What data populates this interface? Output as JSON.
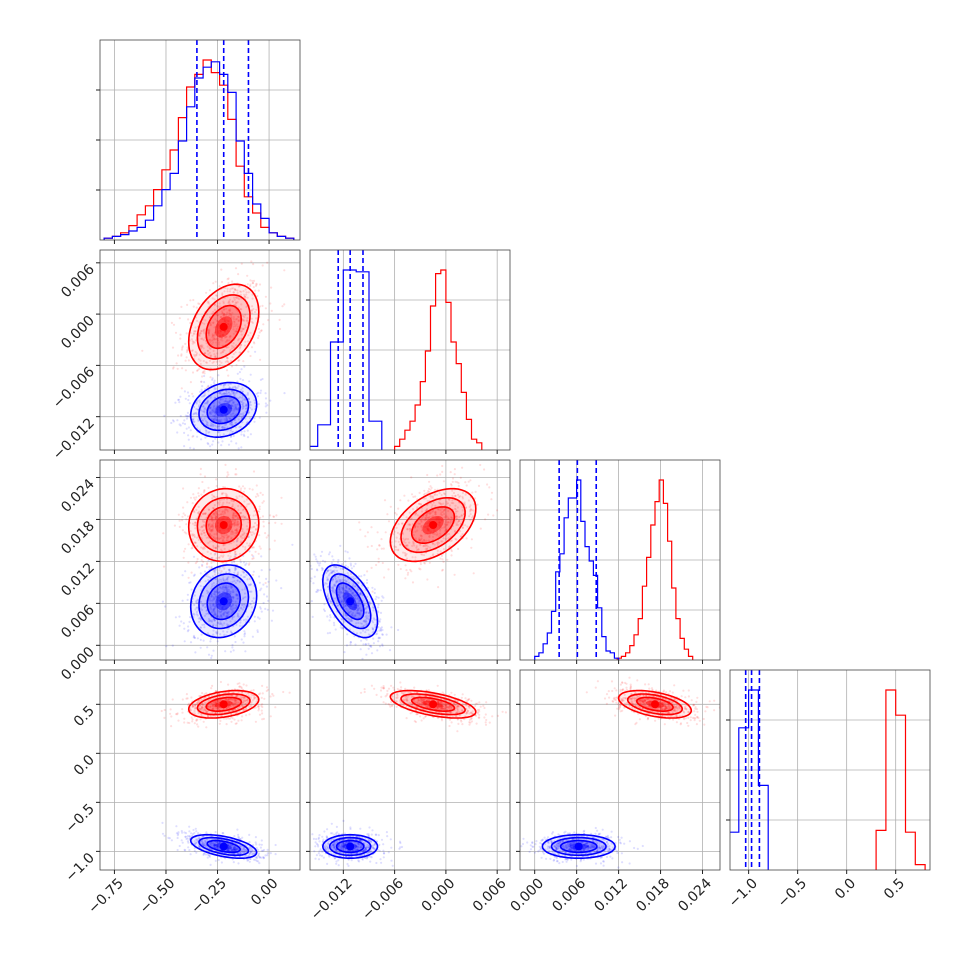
{
  "chart_data": {
    "type": "corner",
    "grid": true,
    "colors": {
      "red": "#ff0000",
      "blue": "#0000ff"
    },
    "params": [
      {
        "range": [
          -0.82,
          0.15
        ],
        "ticks": [
          -0.75,
          -0.5,
          -0.25,
          0.0
        ],
        "tick_labels": [
          "−0.75",
          "−0.50",
          "−0.25",
          "0.00"
        ]
      },
      {
        "range": [
          -0.0159,
          0.0075
        ],
        "ticks": [
          -0.012,
          -0.006,
          0.0,
          0.006
        ],
        "tick_labels": [
          "−0.012",
          "−0.006",
          "0.000",
          "0.006"
        ]
      },
      {
        "range": [
          -0.0021,
          0.0265
        ],
        "ticks": [
          0.0,
          0.006,
          0.012,
          0.018,
          0.024
        ],
        "tick_labels": [
          "0.000",
          "0.006",
          "0.012",
          "0.018",
          "0.024"
        ]
      },
      {
        "range": [
          -1.19,
          0.85
        ],
        "ticks": [
          -1.0,
          -0.5,
          0.0,
          0.5
        ],
        "tick_labels": [
          "−1.0",
          "−0.5",
          "0.0",
          "0.5"
        ]
      }
    ],
    "series": [
      {
        "color": "red",
        "mean": [
          -0.22,
          -0.0015,
          0.0172,
          0.5
        ],
        "sd": [
          0.085,
          0.0025,
          0.0026,
          0.07
        ],
        "corr": [
          [
            1,
            0.35,
            0.05,
            0.35
          ],
          [
            0.35,
            1,
            0.45,
            -0.55
          ],
          [
            0.05,
            0.45,
            1,
            -0.45
          ],
          [
            0.35,
            -0.55,
            -0.45,
            1
          ]
        ],
        "hist": [
          {
            "bins": [
              -0.8,
              -0.76,
              -0.72,
              -0.68,
              -0.64,
              -0.6,
              -0.56,
              -0.52,
              -0.48,
              -0.44,
              -0.4,
              -0.36,
              -0.32,
              -0.28,
              -0.24,
              -0.2,
              -0.16,
              -0.12,
              -0.08,
              -0.04,
              0.0,
              0.04,
              0.08,
              0.12
            ],
            "counts": [
              0.01,
              0.02,
              0.04,
              0.08,
              0.14,
              0.19,
              0.28,
              0.39,
              0.5,
              0.68,
              0.85,
              0.92,
              1.0,
              0.93,
              0.86,
              0.67,
              0.41,
              0.24,
              0.15,
              0.07,
              0.04,
              0.02,
              0.01
            ]
          },
          {
            "bins": [
              -0.006,
              -0.0054,
              -0.0048,
              -0.0042,
              -0.0036,
              -0.003,
              -0.0024,
              -0.0018,
              -0.0012,
              -0.0006,
              0.0,
              0.0006,
              0.0012,
              0.0018,
              0.0024,
              0.003,
              0.0036,
              0.0042
            ],
            "counts": [
              0.02,
              0.06,
              0.11,
              0.16,
              0.25,
              0.38,
              0.55,
              0.8,
              0.98,
              1.0,
              0.82,
              0.6,
              0.48,
              0.32,
              0.17,
              0.06,
              0.04
            ]
          },
          {
            "bins": [
              0.0118,
              0.0124,
              0.013,
              0.0136,
              0.0142,
              0.0148,
              0.0154,
              0.016,
              0.0166,
              0.0172,
              0.0178,
              0.0184,
              0.019,
              0.0196,
              0.0202,
              0.0208,
              0.0214,
              0.022,
              0.0226
            ],
            "counts": [
              0.01,
              0.02,
              0.04,
              0.08,
              0.14,
              0.23,
              0.41,
              0.57,
              0.75,
              0.88,
              1.0,
              0.87,
              0.66,
              0.4,
              0.23,
              0.12,
              0.06,
              0.02
            ]
          },
          {
            "bins": [
              0.3,
              0.4,
              0.5,
              0.6,
              0.7,
              0.8
            ],
            "counts": [
              0.22,
              1.0,
              0.86,
              0.21,
              0.03
            ]
          }
        ]
      },
      {
        "color": "blue",
        "mean": [
          -0.22,
          -0.0112,
          0.0063,
          -0.95
        ],
        "sd": [
          0.08,
          0.0016,
          0.0026,
          0.06
        ],
        "corr": [
          [
            1,
            0.2,
            0.15,
            -0.5
          ],
          [
            0.2,
            1,
            -0.55,
            0.0
          ],
          [
            0.15,
            -0.55,
            1,
            0.0
          ],
          [
            -0.5,
            0.0,
            0.0,
            1
          ]
        ],
        "quantiles": [
          [
            -0.35,
            -0.22,
            -0.1
          ],
          [
            -0.0126,
            -0.0112,
            -0.0097
          ],
          [
            0.0035,
            0.0061,
            0.0088
          ],
          [
            -1.03,
            -0.97,
            -0.89
          ]
        ],
        "hist": [
          {
            "bins": [
              -0.8,
              -0.76,
              -0.72,
              -0.68,
              -0.64,
              -0.6,
              -0.56,
              -0.52,
              -0.48,
              -0.44,
              -0.4,
              -0.36,
              -0.32,
              -0.28,
              -0.24,
              -0.2,
              -0.16,
              -0.12,
              -0.08,
              -0.04,
              0.0,
              0.04,
              0.08,
              0.12
            ],
            "counts": [
              0.01,
              0.02,
              0.03,
              0.05,
              0.07,
              0.11,
              0.19,
              0.28,
              0.37,
              0.55,
              0.74,
              0.9,
              0.96,
              0.99,
              0.92,
              0.82,
              0.55,
              0.37,
              0.2,
              0.12,
              0.04,
              0.02,
              0.01
            ]
          },
          {
            "bins": [
              -0.0165,
              -0.015,
              -0.0135,
              -0.012,
              -0.0105,
              -0.009,
              -0.0075
            ],
            "counts": [
              0.02,
              0.14,
              0.6,
              1.0,
              0.99,
              0.16
            ]
          },
          {
            "bins": [
              0.0,
              0.0006,
              0.0012,
              0.0018,
              0.0024,
              0.003,
              0.0036,
              0.0042,
              0.0048,
              0.0054,
              0.006,
              0.0066,
              0.0072,
              0.0078,
              0.0084,
              0.009,
              0.0096,
              0.0102,
              0.0108,
              0.0114,
              0.012
            ],
            "counts": [
              0.02,
              0.04,
              0.09,
              0.15,
              0.27,
              0.49,
              0.59,
              0.79,
              0.9,
              0.9,
              1.0,
              0.77,
              0.63,
              0.55,
              0.47,
              0.29,
              0.13,
              0.05,
              0.04,
              0.01
            ]
          },
          {
            "bins": [
              -1.2,
              -1.1,
              -1.0,
              -0.9,
              -0.8
            ],
            "counts": [
              0.21,
              0.79,
              1.0,
              0.47
            ]
          }
        ]
      }
    ]
  }
}
